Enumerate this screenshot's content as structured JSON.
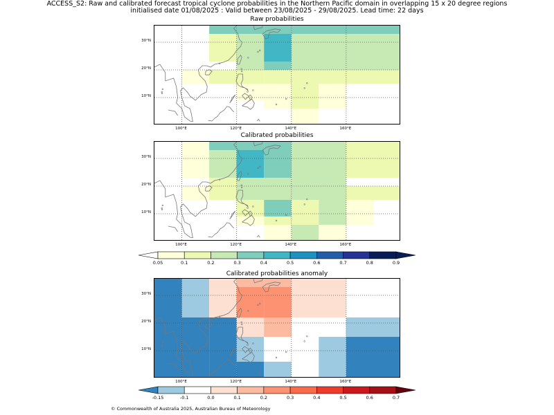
{
  "header": {
    "title_line1": "ACCESS_S2: Raw and calibrated forecast tropical cyclone probabilities in the Northern Pacific domain in overlapping 15 x 20 degree regions",
    "title_line2": "initialised date 01/08/2025 :  Valid between 23/08/2025 - 29/08/2025. Lead time: 22 days"
  },
  "footer": "© Commonwealth of Australia 2025, Australian Bureau of Meteorology",
  "axes": {
    "lon_ticks": [
      "100°E",
      "120°E",
      "140°E",
      "160°E"
    ],
    "lat_ticks": [
      "30°N",
      "20°N",
      "10°N"
    ]
  },
  "colorbar_prob": {
    "ticks": [
      "0.05",
      "0.1",
      "0.2",
      "0.3",
      "0.4",
      "0.5",
      "0.6",
      "0.7",
      "0.8",
      "0.9"
    ],
    "colors": [
      "#ffffd9",
      "#edf8b1",
      "#c7e9b4",
      "#7fcdbb",
      "#41b6c4",
      "#1d91c0",
      "#225ea8",
      "#253494",
      "#081d58"
    ]
  },
  "colorbar_anom": {
    "ticks": [
      "-0.15",
      "-0.1",
      "0.0",
      "0.1",
      "0.2",
      "0.3",
      "0.4",
      "0.5",
      "0.6",
      "0.7"
    ],
    "colors": [
      "#9ecae1",
      "#ffffff",
      "#fee0d2",
      "#fcbba1",
      "#fc9272",
      "#fb6a4a",
      "#ef3b2c",
      "#cb181d",
      "#a50f15"
    ],
    "under": "#3182bd",
    "over": "#67000d"
  },
  "chart_data": [
    {
      "type": "heatmap",
      "title": "Raw probabilities",
      "xlabel": "",
      "ylabel": "",
      "xlim": [
        90,
        180
      ],
      "ylim": [
        0,
        36
      ],
      "cells": [
        {
          "lon": [
            110,
            120
          ],
          "lat": [
            33,
            36
          ],
          "v": 0.3
        },
        {
          "lon": [
            120,
            130
          ],
          "lat": [
            33,
            36
          ],
          "v": 0.3
        },
        {
          "lon": [
            130,
            140
          ],
          "lat": [
            33,
            36
          ],
          "v": 0.3
        },
        {
          "lon": [
            140,
            180
          ],
          "lat": [
            33,
            36
          ],
          "v": 0.3
        },
        {
          "lon": [
            110,
            120
          ],
          "lat": [
            23,
            33
          ],
          "v": 0.1
        },
        {
          "lon": [
            120,
            130
          ],
          "lat": [
            23,
            33
          ],
          "v": 0.2
        },
        {
          "lon": [
            130,
            140
          ],
          "lat": [
            23,
            33
          ],
          "v": 0.4
        },
        {
          "lon": [
            140,
            180
          ],
          "lat": [
            23,
            33
          ],
          "v": 0.2
        },
        {
          "lon": [
            120,
            130
          ],
          "lat": [
            20,
            23
          ],
          "v": 0.2
        },
        {
          "lon": [
            130,
            140
          ],
          "lat": [
            20,
            23
          ],
          "v": 0.3
        },
        {
          "lon": [
            140,
            180
          ],
          "lat": [
            20,
            23
          ],
          "v": 0.2
        },
        {
          "lon": [
            100,
            110
          ],
          "lat": [
            15,
            20
          ],
          "v": 0.05
        },
        {
          "lon": [
            110,
            120
          ],
          "lat": [
            15,
            20
          ],
          "v": 0.1
        },
        {
          "lon": [
            120,
            130
          ],
          "lat": [
            15,
            20
          ],
          "v": 0.1
        },
        {
          "lon": [
            130,
            140
          ],
          "lat": [
            15,
            20
          ],
          "v": 0.1
        },
        {
          "lon": [
            140,
            180
          ],
          "lat": [
            15,
            20
          ],
          "v": 0.1
        },
        {
          "lon": [
            120,
            130
          ],
          "lat": [
            9,
            15
          ],
          "v": 0.05
        },
        {
          "lon": [
            130,
            140
          ],
          "lat": [
            9,
            15
          ],
          "v": 0.05
        },
        {
          "lon": [
            140,
            150
          ],
          "lat": [
            9,
            15
          ],
          "v": 0.1
        },
        {
          "lon": [
            150,
            160
          ],
          "lat": [
            9,
            15
          ],
          "v": 0.05
        },
        {
          "lon": [
            130,
            140
          ],
          "lat": [
            6,
            9
          ],
          "v": 0.05
        },
        {
          "lon": [
            140,
            150
          ],
          "lat": [
            6,
            9
          ],
          "v": 0.1
        },
        {
          "lon": [
            150,
            160
          ],
          "lat": [
            6,
            9
          ],
          "v": 0.05
        },
        {
          "lon": [
            140,
            150
          ],
          "lat": [
            0,
            6
          ],
          "v": 0.05
        }
      ]
    },
    {
      "type": "heatmap",
      "title": "Calibrated probabilities",
      "xlabel": "",
      "ylabel": "",
      "xlim": [
        90,
        180
      ],
      "ylim": [
        0,
        36
      ],
      "cells": [
        {
          "lon": [
            100,
            110
          ],
          "lat": [
            33,
            36
          ],
          "v": 0.05
        },
        {
          "lon": [
            110,
            120
          ],
          "lat": [
            33,
            36
          ],
          "v": 0.3
        },
        {
          "lon": [
            120,
            130
          ],
          "lat": [
            33,
            36
          ],
          "v": 0.3
        },
        {
          "lon": [
            130,
            140
          ],
          "lat": [
            33,
            36
          ],
          "v": 0.3
        },
        {
          "lon": [
            140,
            160
          ],
          "lat": [
            33,
            36
          ],
          "v": 0.2
        },
        {
          "lon": [
            160,
            180
          ],
          "lat": [
            33,
            36
          ],
          "v": 0.1
        },
        {
          "lon": [
            100,
            110
          ],
          "lat": [
            23,
            33
          ],
          "v": 0.05
        },
        {
          "lon": [
            110,
            120
          ],
          "lat": [
            23,
            33
          ],
          "v": 0.2
        },
        {
          "lon": [
            120,
            130
          ],
          "lat": [
            23,
            33
          ],
          "v": 0.4
        },
        {
          "lon": [
            130,
            140
          ],
          "lat": [
            23,
            33
          ],
          "v": 0.3
        },
        {
          "lon": [
            140,
            160
          ],
          "lat": [
            23,
            33
          ],
          "v": 0.2
        },
        {
          "lon": [
            160,
            180
          ],
          "lat": [
            23,
            33
          ],
          "v": 0.1
        },
        {
          "lon": [
            110,
            120
          ],
          "lat": [
            20,
            23
          ],
          "v": 0.1
        },
        {
          "lon": [
            120,
            140
          ],
          "lat": [
            20,
            23
          ],
          "v": 0.2
        },
        {
          "lon": [
            140,
            160
          ],
          "lat": [
            20,
            23
          ],
          "v": 0.2
        },
        {
          "lon": [
            100,
            110
          ],
          "lat": [
            15,
            20
          ],
          "v": 0.05
        },
        {
          "lon": [
            110,
            120
          ],
          "lat": [
            15,
            20
          ],
          "v": 0.1
        },
        {
          "lon": [
            120,
            140
          ],
          "lat": [
            15,
            20
          ],
          "v": 0.2
        },
        {
          "lon": [
            140,
            160
          ],
          "lat": [
            15,
            20
          ],
          "v": 0.2
        },
        {
          "lon": [
            160,
            180
          ],
          "lat": [
            15,
            20
          ],
          "v": 0.1
        },
        {
          "lon": [
            120,
            130
          ],
          "lat": [
            9,
            15
          ],
          "v": 0.1
        },
        {
          "lon": [
            130,
            140
          ],
          "lat": [
            9,
            15
          ],
          "v": 0.3
        },
        {
          "lon": [
            140,
            150
          ],
          "lat": [
            9,
            15
          ],
          "v": 0.1
        },
        {
          "lon": [
            150,
            160
          ],
          "lat": [
            9,
            15
          ],
          "v": 0.2
        },
        {
          "lon": [
            160,
            170
          ],
          "lat": [
            9,
            15
          ],
          "v": 0.05
        },
        {
          "lon": [
            120,
            130
          ],
          "lat": [
            6,
            9
          ],
          "v": 0.05
        },
        {
          "lon": [
            130,
            140
          ],
          "lat": [
            6,
            9
          ],
          "v": 0.1
        },
        {
          "lon": [
            140,
            150
          ],
          "lat": [
            6,
            9
          ],
          "v": 0.1
        },
        {
          "lon": [
            150,
            160
          ],
          "lat": [
            6,
            9
          ],
          "v": 0.2
        },
        {
          "lon": [
            160,
            170
          ],
          "lat": [
            6,
            9
          ],
          "v": 0.05
        },
        {
          "lon": [
            130,
            140
          ],
          "lat": [
            0,
            6
          ],
          "v": 0.05
        },
        {
          "lon": [
            140,
            150
          ],
          "lat": [
            0,
            6
          ],
          "v": 0.2
        },
        {
          "lon": [
            150,
            160
          ],
          "lat": [
            0,
            6
          ],
          "v": 0.05
        }
      ]
    },
    {
      "type": "heatmap",
      "title": "Calibrated probabilities anomaly",
      "xlabel": "",
      "ylabel": "",
      "xlim": [
        90,
        180
      ],
      "ylim": [
        0,
        36
      ],
      "cells": [
        {
          "lon": [
            90,
            100
          ],
          "lat": [
            0,
            36
          ],
          "v": -0.2
        },
        {
          "lon": [
            100,
            110
          ],
          "lat": [
            22,
            36
          ],
          "v": -0.12
        },
        {
          "lon": [
            100,
            110
          ],
          "lat": [
            0,
            22
          ],
          "v": -0.2
        },
        {
          "lon": [
            110,
            120
          ],
          "lat": [
            22,
            36
          ],
          "v": 0.05
        },
        {
          "lon": [
            110,
            120
          ],
          "lat": [
            15,
            22
          ],
          "v": -0.2
        },
        {
          "lon": [
            110,
            120
          ],
          "lat": [
            0,
            15
          ],
          "v": -0.2
        },
        {
          "lon": [
            120,
            130
          ],
          "lat": [
            33,
            36
          ],
          "v": 0.15
        },
        {
          "lon": [
            120,
            130
          ],
          "lat": [
            22,
            33
          ],
          "v": 0.25
        },
        {
          "lon": [
            120,
            130
          ],
          "lat": [
            15,
            22
          ],
          "v": 0.05
        },
        {
          "lon": [
            120,
            130
          ],
          "lat": [
            6,
            15
          ],
          "v": -0.12
        },
        {
          "lon": [
            120,
            130
          ],
          "lat": [
            0,
            6
          ],
          "v": -0.2
        },
        {
          "lon": [
            130,
            140
          ],
          "lat": [
            33,
            36
          ],
          "v": 0.15
        },
        {
          "lon": [
            130,
            140
          ],
          "lat": [
            22,
            33
          ],
          "v": 0.25
        },
        {
          "lon": [
            130,
            140
          ],
          "lat": [
            15,
            22
          ],
          "v": 0.15
        },
        {
          "lon": [
            130,
            140
          ],
          "lat": [
            6,
            15
          ],
          "v": 0.0
        },
        {
          "lon": [
            130,
            140
          ],
          "lat": [
            0,
            6
          ],
          "v": -0.12
        },
        {
          "lon": [
            140,
            160
          ],
          "lat": [
            22,
            36
          ],
          "v": 0.05
        },
        {
          "lon": [
            140,
            160
          ],
          "lat": [
            15,
            22
          ],
          "v": 0.0
        },
        {
          "lon": [
            140,
            150
          ],
          "lat": [
            0,
            15
          ],
          "v": 0.0
        },
        {
          "lon": [
            150,
            160
          ],
          "lat": [
            0,
            15
          ],
          "v": -0.12
        },
        {
          "lon": [
            160,
            180
          ],
          "lat": [
            22,
            36
          ],
          "v": 0.0
        },
        {
          "lon": [
            160,
            180
          ],
          "lat": [
            15,
            22
          ],
          "v": -0.12
        },
        {
          "lon": [
            160,
            180
          ],
          "lat": [
            0,
            15
          ],
          "v": -0.2
        }
      ]
    }
  ]
}
